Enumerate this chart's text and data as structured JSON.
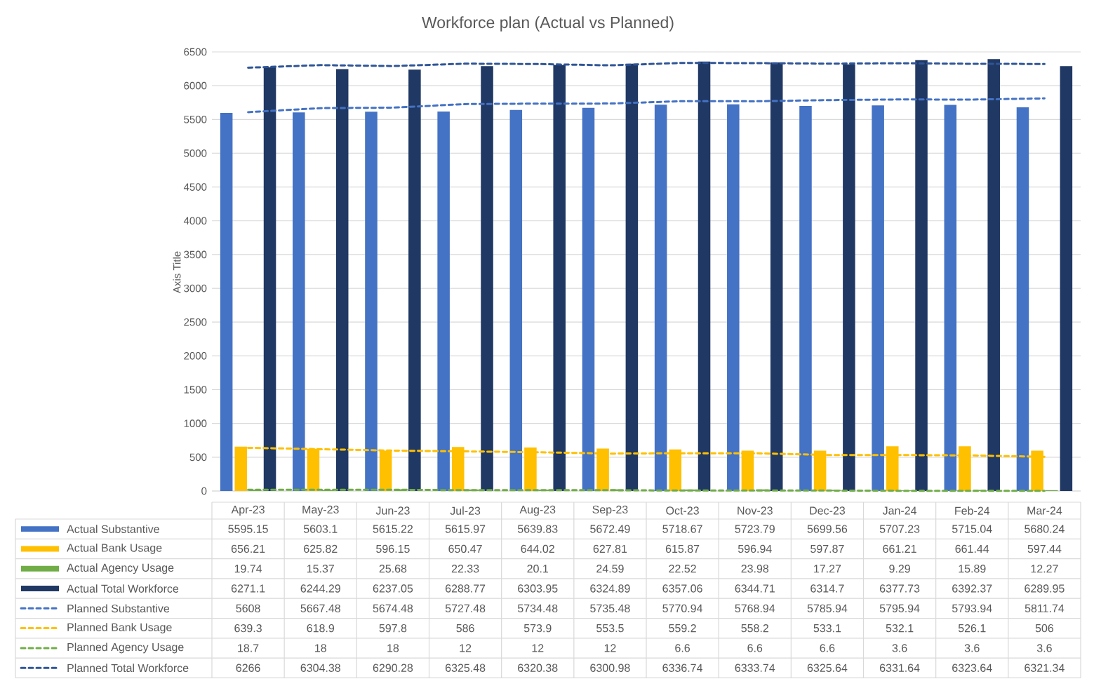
{
  "chart_data": {
    "type": "bar",
    "title": "Workforce plan (Actual vs Planned)",
    "ylabel": "Axis Title",
    "categories": [
      "Apr-23",
      "May-23",
      "Jun-23",
      "Jul-23",
      "Aug-23",
      "Sep-23",
      "Oct-23",
      "Nov-23",
      "Dec-23",
      "Jan-24",
      "Feb-24",
      "Mar-24"
    ],
    "series": [
      {
        "name": "Actual Substantive",
        "color": "#4472c4",
        "values": [
          5595.15,
          5603.1,
          5615.22,
          5615.97,
          5639.83,
          5672.49,
          5718.67,
          5723.79,
          5699.56,
          5707.23,
          5715.04,
          5680.24
        ]
      },
      {
        "name": "Actual Bank Usage",
        "color": "#ffc000",
        "values": [
          656.21,
          625.82,
          596.15,
          650.47,
          644.02,
          627.81,
          615.87,
          596.94,
          597.87,
          661.21,
          661.44,
          597.44
        ]
      },
      {
        "name": "Actual Agency Usage",
        "color": "#70ad47",
        "values": [
          19.74,
          15.37,
          25.68,
          22.33,
          20.1,
          24.59,
          22.52,
          23.98,
          17.27,
          9.29,
          15.89,
          12.27
        ]
      },
      {
        "name": "Actual Total Workforce",
        "color": "#203864",
        "values": [
          6271.1,
          6244.29,
          6237.05,
          6288.77,
          6303.95,
          6324.89,
          6357.06,
          6344.71,
          6314.7,
          6377.73,
          6392.37,
          6289.95
        ]
      },
      {
        "name": "Planned Substantive",
        "type": "line",
        "line_style": "dashed",
        "color": "#4472c4",
        "values": [
          5608,
          5667.48,
          5674.48,
          5727.48,
          5734.48,
          5735.48,
          5770.94,
          5768.94,
          5785.94,
          5795.94,
          5793.94,
          5811.74
        ]
      },
      {
        "name": "Planned Bank Usage",
        "type": "line",
        "line_style": "dashed",
        "color": "#ffc000",
        "values": [
          639.3,
          618.9,
          597.8,
          586,
          573.9,
          553.5,
          559.2,
          558.2,
          533.1,
          532.1,
          526.1,
          506
        ]
      },
      {
        "name": "Planned Agency Usage",
        "type": "line",
        "line_style": "dashed",
        "color": "#70ad47",
        "values": [
          18.7,
          18,
          18,
          12,
          12,
          12,
          6.6,
          6.6,
          6.6,
          3.6,
          3.6,
          3.6
        ]
      },
      {
        "name": "Planned Total Workforce",
        "type": "line",
        "line_style": "dashed",
        "color": "#2f5597",
        "values": [
          6266,
          6304.38,
          6290.28,
          6325.48,
          6320.38,
          6300.98,
          6336.74,
          6333.74,
          6325.64,
          6331.64,
          6323.64,
          6321.34
        ]
      }
    ],
    "ylim": [
      0,
      6500
    ],
    "yticks": [
      0,
      500,
      1000,
      1500,
      2000,
      2500,
      3000,
      3500,
      4000,
      4500,
      5000,
      5500,
      6000,
      6500
    ],
    "grid": "y",
    "legend": "bottom",
    "data_labels": true
  }
}
